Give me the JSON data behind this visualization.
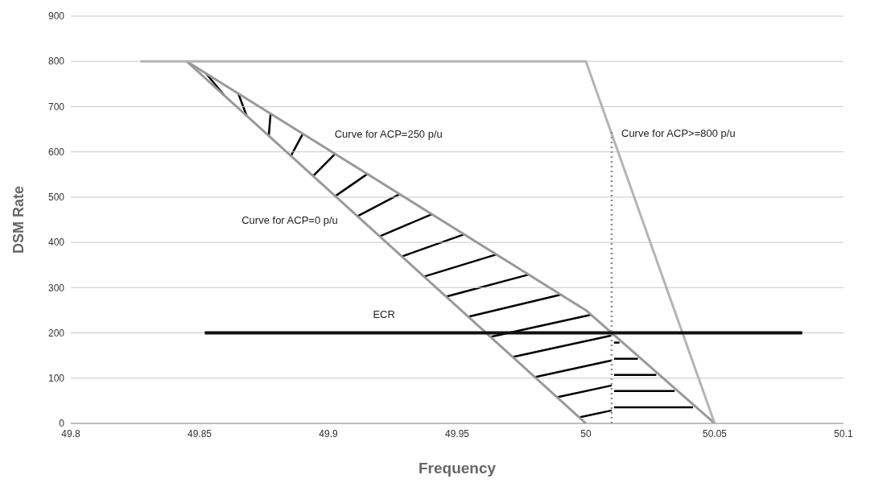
{
  "chart_data": {
    "type": "line",
    "xlabel": "Frequency",
    "ylabel": "DSM Rate",
    "xlim": [
      49.8,
      50.1
    ],
    "xticks": [
      49.8,
      49.85,
      49.9,
      49.95,
      50,
      50.05,
      50.1
    ],
    "ylim": [
      0,
      900
    ],
    "yticks": [
      0,
      100,
      200,
      300,
      400,
      500,
      600,
      700,
      800,
      900
    ],
    "grid": "y",
    "legend": false,
    "marker": "none",
    "series": [
      {
        "name": "Curve for ACP=0 p/u",
        "color": "#999999",
        "x": [
          49.845,
          50.0
        ],
        "values": [
          800,
          0
        ]
      },
      {
        "name": "Curve for ACP=250 p/u",
        "color": "#999999",
        "x": [
          49.845,
          50.0,
          50.05
        ],
        "values": [
          800,
          250,
          0
        ]
      },
      {
        "name": "Curve for ACP>=800 p/u",
        "color": "#b4b4b4",
        "x": [
          49.827,
          50.0,
          50.05
        ],
        "values": [
          800,
          800,
          0
        ]
      },
      {
        "name": "ECR",
        "color": "#111111",
        "x": [
          49.852,
          50.084
        ],
        "values": [
          200,
          200
        ]
      },
      {
        "color": "#8c8c8c",
        "x": [
          50.01,
          50.01
        ],
        "values": [
          0,
          650
        ],
        "line_style": "dotted"
      }
    ]
  }
}
